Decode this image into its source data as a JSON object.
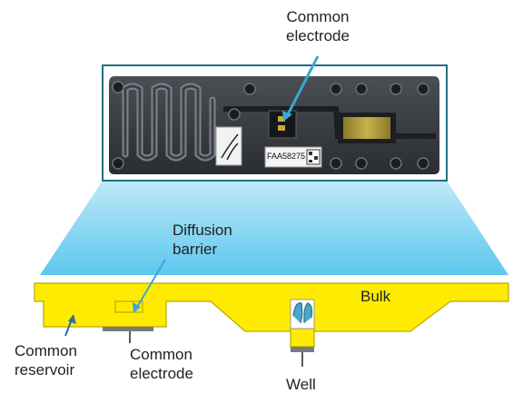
{
  "labels": {
    "photo_common_electrode": "Common\nelectrode",
    "diffusion_barrier": "Diffusion\nbarrier",
    "bulk": "Bulk",
    "common_reservoir": "Common\nreservoir",
    "schematic_common_electrode": "Common\nelectrode",
    "well": "Well",
    "chip_serial": "FAA58275"
  },
  "colors": {
    "frame_border": "#1f6f82",
    "pointer_arrow": "#3aa6d9",
    "projection_top": "#bfe9f7",
    "projection_bottom": "#5cc7ef",
    "channel_fill": "#ffeb00",
    "channel_stroke": "#b9a800",
    "electrode_gray": "#7a7a7a",
    "well_cap": "#49a7c9",
    "text": "#222222"
  }
}
